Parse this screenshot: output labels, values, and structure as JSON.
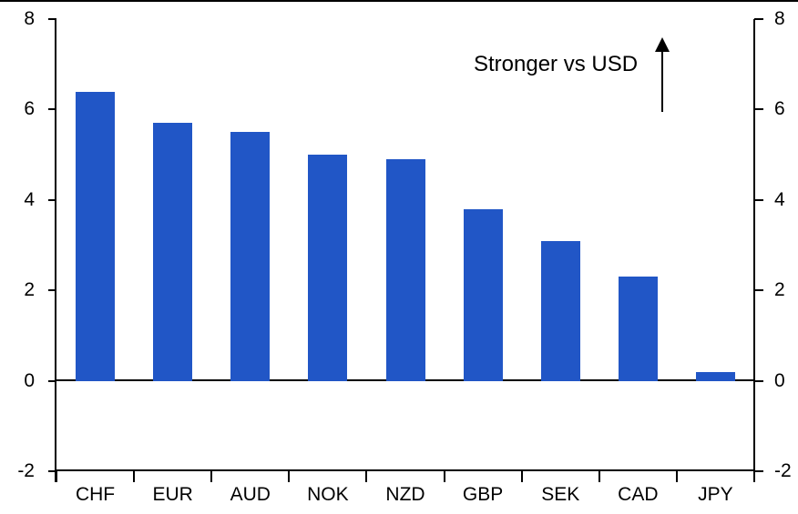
{
  "chart_data": {
    "type": "bar",
    "title": "",
    "xlabel": "",
    "ylabel": "",
    "categories": [
      "CHF",
      "EUR",
      "AUD",
      "NOK",
      "NZD",
      "GBP",
      "SEK",
      "CAD",
      "JPY"
    ],
    "values": [
      6.4,
      5.7,
      5.5,
      5.0,
      4.9,
      3.8,
      3.1,
      2.3,
      0.2
    ],
    "ylim": [
      -2,
      8
    ],
    "yticks": [
      8,
      6,
      4,
      2,
      0,
      -2
    ],
    "ytick_labels": [
      "8",
      "6",
      "4",
      "2",
      "0",
      "-2"
    ],
    "dual_y_axis": true,
    "grid": false,
    "legend": false,
    "annotation": {
      "text": "Stronger vs USD",
      "arrow": "up"
    },
    "colors": {
      "bar": "#2156C6",
      "axis": "#000000",
      "background": "#ffffff"
    }
  }
}
